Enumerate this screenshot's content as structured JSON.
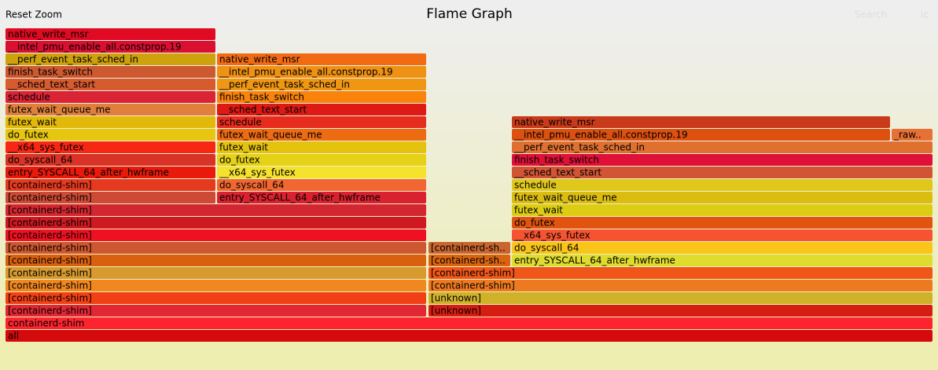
{
  "chart_data": {
    "type": "flame",
    "title": "Flame Graph",
    "controls": {
      "reset": "Reset Zoom",
      "search": "Search",
      "ic": "ic"
    },
    "xlim": [
      0,
      1180
    ],
    "frames": [
      {
        "label": "all",
        "depth": 0,
        "start": 0,
        "width": 1180,
        "color": "#d50a0d"
      },
      {
        "label": "containerd-shim",
        "depth": 1,
        "start": 0,
        "width": 1180,
        "color": "#fd2430"
      },
      {
        "label": "[containerd-shim]",
        "depth": 2,
        "start": 0,
        "width": 536,
        "color": "#e22734"
      },
      {
        "label": "[unknown]",
        "depth": 2,
        "start": 538,
        "width": 642,
        "color": "#d61d12"
      },
      {
        "label": "[containerd-shim]",
        "depth": 3,
        "start": 0,
        "width": 536,
        "color": "#f24016"
      },
      {
        "label": "[unknown]",
        "depth": 3,
        "start": 538,
        "width": 642,
        "color": "#cfb22a"
      },
      {
        "label": "[containerd-shim]",
        "depth": 4,
        "start": 0,
        "width": 536,
        "color": "#f1871f"
      },
      {
        "label": "[containerd-shim]",
        "depth": 4,
        "start": 538,
        "width": 642,
        "color": "#ee7a20"
      },
      {
        "label": "[containerd-shim]",
        "depth": 5,
        "start": 0,
        "width": 536,
        "color": "#d69a2f"
      },
      {
        "label": "[containerd-shim]",
        "depth": 5,
        "start": 538,
        "width": 642,
        "color": "#f0561a"
      },
      {
        "label": "[containerd-shim]",
        "depth": 6,
        "start": 0,
        "width": 536,
        "color": "#d9600f"
      },
      {
        "label": "[containerd-sh..",
        "depth": 6,
        "start": 538,
        "width": 105,
        "color": "#d96410"
      },
      {
        "label": "entry_SYSCALL_64_after_hwframe",
        "depth": 6,
        "start": 644,
        "width": 536,
        "color": "#dfdc2e"
      },
      {
        "label": "[containerd-shim]",
        "depth": 7,
        "start": 0,
        "width": 536,
        "color": "#cc5730"
      },
      {
        "label": "[containerd-sh..",
        "depth": 7,
        "start": 538,
        "width": 105,
        "color": "#c96531"
      },
      {
        "label": "do_syscall_64",
        "depth": 7,
        "start": 644,
        "width": 536,
        "color": "#f9c51a"
      },
      {
        "label": "[containerd-shim]",
        "depth": 8,
        "start": 0,
        "width": 536,
        "color": "#ef1122"
      },
      {
        "label": "__x64_sys_futex",
        "depth": 8,
        "start": 644,
        "width": 536,
        "color": "#f65430"
      },
      {
        "label": "[containerd-shim]",
        "depth": 9,
        "start": 0,
        "width": 536,
        "color": "#ce1922"
      },
      {
        "label": "do_futex",
        "depth": 9,
        "start": 644,
        "width": 536,
        "color": "#e05410"
      },
      {
        "label": "[containerd-shim]",
        "depth": 10,
        "start": 0,
        "width": 536,
        "color": "#d22730"
      },
      {
        "label": "futex_wait",
        "depth": 10,
        "start": 644,
        "width": 536,
        "color": "#dccd14"
      },
      {
        "label": "[containerd-shim]",
        "depth": 11,
        "start": 0,
        "width": 268,
        "color": "#cd4a36"
      },
      {
        "label": "entry_SYSCALL_64_after_hwframe",
        "depth": 11,
        "start": 269,
        "width": 267,
        "color": "#d9212f"
      },
      {
        "label": "futex_wait_queue_me",
        "depth": 11,
        "start": 644,
        "width": 536,
        "color": "#dbbd11"
      },
      {
        "label": "[containerd-shim]",
        "depth": 12,
        "start": 0,
        "width": 268,
        "color": "#e63a20"
      },
      {
        "label": "do_syscall_64",
        "depth": 12,
        "start": 269,
        "width": 267,
        "color": "#f26731"
      },
      {
        "label": "schedule",
        "depth": 12,
        "start": 644,
        "width": 536,
        "color": "#e0c81a"
      },
      {
        "label": "entry_SYSCALL_64_after_hwframe",
        "depth": 13,
        "start": 0,
        "width": 268,
        "color": "#e91a0b"
      },
      {
        "label": "__x64_sys_futex",
        "depth": 13,
        "start": 269,
        "width": 267,
        "color": "#f5e22d"
      },
      {
        "label": "__sched_text_start",
        "depth": 13,
        "start": 644,
        "width": 536,
        "color": "#d15435"
      },
      {
        "label": "do_syscall_64",
        "depth": 14,
        "start": 0,
        "width": 268,
        "color": "#d93226"
      },
      {
        "label": "do_futex",
        "depth": 14,
        "start": 269,
        "width": 267,
        "color": "#e5d217"
      },
      {
        "label": "finish_task_switch",
        "depth": 14,
        "start": 644,
        "width": 536,
        "color": "#df1138"
      },
      {
        "label": "__x64_sys_futex",
        "depth": 15,
        "start": 0,
        "width": 268,
        "color": "#f82714"
      },
      {
        "label": "futex_wait",
        "depth": 15,
        "start": 269,
        "width": 267,
        "color": "#e4c20e"
      },
      {
        "label": "__perf_event_task_sched_in",
        "depth": 15,
        "start": 644,
        "width": 536,
        "color": "#e07030"
      },
      {
        "label": "do_futex",
        "depth": 16,
        "start": 0,
        "width": 268,
        "color": "#e7c60f"
      },
      {
        "label": "futex_wait_queue_me",
        "depth": 16,
        "start": 269,
        "width": 267,
        "color": "#ed6b13"
      },
      {
        "label": "__intel_pmu_enable_all.constprop.19",
        "depth": 16,
        "start": 644,
        "width": 482,
        "color": "#dd5010"
      },
      {
        "label": "_raw..",
        "depth": 16,
        "start": 1127,
        "width": 53,
        "color": "#e77034"
      },
      {
        "label": "futex_wait",
        "depth": 17,
        "start": 0,
        "width": 268,
        "color": "#e2b80b"
      },
      {
        "label": "schedule",
        "depth": 17,
        "start": 269,
        "width": 267,
        "color": "#e52c1d"
      },
      {
        "label": "native_write_msr",
        "depth": 17,
        "start": 644,
        "width": 482,
        "color": "#c93a1a"
      },
      {
        "label": "futex_wait_queue_me",
        "depth": 18,
        "start": 0,
        "width": 268,
        "color": "#e0803c"
      },
      {
        "label": "__sched_text_start",
        "depth": 18,
        "start": 269,
        "width": 267,
        "color": "#dd1a14"
      },
      {
        "label": "schedule",
        "depth": 19,
        "start": 0,
        "width": 268,
        "color": "#db2336"
      },
      {
        "label": "finish_task_switch",
        "depth": 19,
        "start": 269,
        "width": 267,
        "color": "#f9830b"
      },
      {
        "label": "__sched_text_start",
        "depth": 20,
        "start": 0,
        "width": 268,
        "color": "#d65b2f"
      },
      {
        "label": "__perf_event_task_sched_in",
        "depth": 20,
        "start": 269,
        "width": 267,
        "color": "#ef9612"
      },
      {
        "label": "finish_task_switch",
        "depth": 21,
        "start": 0,
        "width": 268,
        "color": "#cc5930"
      },
      {
        "label": "__intel_pmu_enable_all.constprop.19",
        "depth": 21,
        "start": 269,
        "width": 267,
        "color": "#ef9114"
      },
      {
        "label": "__perf_event_task_sched_in",
        "depth": 22,
        "start": 0,
        "width": 268,
        "color": "#cda20c"
      },
      {
        "label": "native_write_msr",
        "depth": 22,
        "start": 269,
        "width": 267,
        "color": "#f26b13"
      },
      {
        "label": "__intel_pmu_enable_all.constprop.19",
        "depth": 23,
        "start": 0,
        "width": 268,
        "color": "#db0f30"
      },
      {
        "label": "native_write_msr",
        "depth": 24,
        "start": 0,
        "width": 268,
        "color": "#e00b23"
      }
    ]
  }
}
